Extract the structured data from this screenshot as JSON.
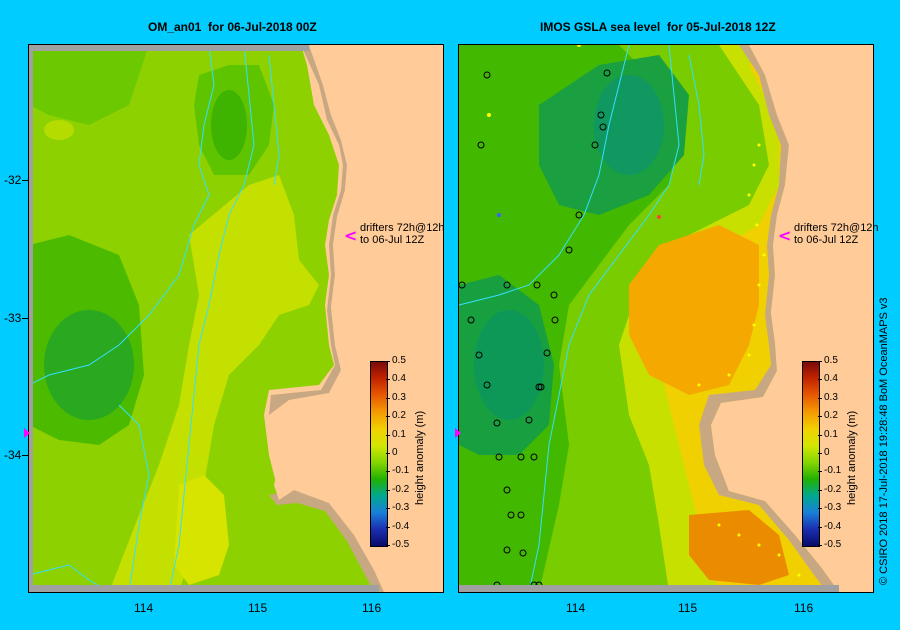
{
  "left_panel": {
    "title": "OM_an01  for 06-Jul-2018 00Z"
  },
  "right_panel": {
    "title": "IMOS GSLA sea level  for 05-Jul-2018 12Z"
  },
  "lat_ticks": [
    "-32",
    "-33",
    "-34"
  ],
  "lon_ticks": [
    "114",
    "115",
    "116"
  ],
  "drifter_note": {
    "line1": "drifters 72h@12h",
    "line2": "to 06-Jul 12Z"
  },
  "colorbar": {
    "title": "height anomaly (m)",
    "labels": [
      "0.5",
      "0.4",
      "0.3",
      "0.2",
      "0.1",
      "0",
      "-0.1",
      "-0.2",
      "-0.3",
      "-0.4",
      "-0.5"
    ],
    "colors": [
      "#7a0a0a",
      "#c42400",
      "#e85a00",
      "#f59a00",
      "#f2d000",
      "#d4e600",
      "#86d600",
      "#22b000",
      "#00a890",
      "#1a7fd8",
      "#1a2fb0",
      "#0a0a6a"
    ]
  },
  "credit": "© CSIRO 2018   17-Jul-2018 19:28:48 BoM OceanMAPS v3",
  "colors": {
    "land": "#ffcc99",
    "coast_shelf": "#c8a882",
    "background": "#00ccff",
    "marker": "#ff00ff"
  }
}
